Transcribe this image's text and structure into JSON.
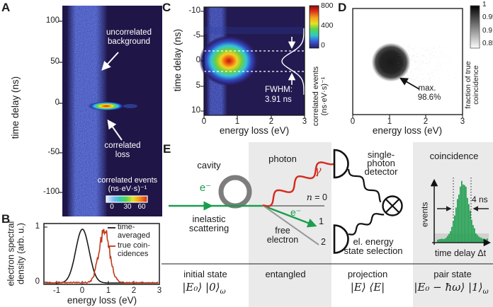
{
  "panel_a": {
    "letter": "A",
    "ylabel": "time delay (ns)",
    "yticks": [
      "100",
      "50",
      "0",
      "-50",
      "-100"
    ],
    "ann_background": [
      "uncorrelated",
      "background"
    ],
    "ann_loss": [
      "correlated",
      "loss"
    ],
    "colorbar": {
      "title": "correlated events",
      "units": "(ns·eV·s)⁻¹",
      "ticks": [
        "0",
        "30",
        "60"
      ]
    }
  },
  "panel_b": {
    "letter": "B",
    "ylabel_lines": [
      "electron spectral",
      "density (arb. u.)"
    ],
    "yticks": [
      "1",
      "0"
    ],
    "xticks": [
      "-1",
      "0",
      "1",
      "2",
      "3"
    ],
    "xlabel": "energy loss (eV)",
    "legend": [
      {
        "lines": [
          "time-",
          "averaged"
        ]
      },
      {
        "lines": [
          "true coin-",
          "cidences"
        ]
      }
    ]
  },
  "panel_c": {
    "letter": "C",
    "ylabel": "time delay (ns)",
    "yticks": [
      "-10",
      "-5",
      "0",
      "5",
      "10"
    ],
    "xticks": [
      "0",
      "1",
      "2",
      "3"
    ],
    "xlabel": "energy loss (eV)",
    "fwhm_lines": [
      "FWHM:",
      "3.91 ns"
    ],
    "colorbar": {
      "ticks": [
        "800",
        "400",
        "0"
      ],
      "label_lines": [
        "correlated events",
        "(ns·eV·s)⁻¹"
      ]
    }
  },
  "panel_d": {
    "letter": "D",
    "xticks": [
      "0",
      "1",
      "2",
      "3"
    ],
    "xlabel": "energy loss (eV)",
    "annotation_lines": [
      "max.",
      "98.6%"
    ],
    "colorbar": {
      "ticks": [
        "1",
        "0.95",
        "0.9",
        "0.85"
      ],
      "label_lines": [
        "fraction of true",
        "coincidence"
      ]
    }
  },
  "panel_e": {
    "letter": "E",
    "cavity": "cavity",
    "electron_in": "e⁻",
    "inelastic_lines": [
      "inelastic",
      "scattering"
    ],
    "photon": "photon",
    "gamma": "γ",
    "n_var": "n",
    "n_rest": " = 0",
    "electron_out": "e⁻",
    "level_1": "1",
    "level_2": "2",
    "free_electron_lines": [
      "free",
      "electron"
    ],
    "detector_lines": [
      "single-",
      "photon",
      "detector"
    ],
    "selection_lines": [
      "el. energy",
      "state selection"
    ],
    "coincidence_title": "coincidence",
    "events_label": "events",
    "fwhm_label": "4 ns",
    "time_axis_label": "time delay Δt",
    "footer": {
      "initial_label": "initial state",
      "initial_formula": "|E₀⟩ |0⟩",
      "initial_sub": "ω",
      "entangled_lines": [
        "entangled",
        "state"
      ],
      "projection_label": "projection",
      "projection_formula": "|E⟩ ⟨E|",
      "pair_label": "pair state",
      "pair_formula": "|E₀ − ħω⟩ |1⟩",
      "pair_sub": "ω"
    }
  },
  "chart_data": [
    {
      "id": "A",
      "type": "heatmap",
      "ylabel": "time delay (ns)",
      "ylim": [
        -130,
        120
      ],
      "yticks": [
        100,
        50,
        0,
        -50,
        -100
      ],
      "features": [
        "uncorrelated background: vertical noisy stripe near zero energy loss spanning all time delays",
        "correlated loss: bright horizontal spot at time delay 0 ns, energy loss ≈ 0.5–1 eV"
      ],
      "colorbar": {
        "label": "correlated events (ns·eV·s)⁻¹",
        "ticks": [
          0,
          30,
          60
        ]
      }
    },
    {
      "id": "B",
      "type": "line",
      "xlabel": "energy loss (eV)",
      "ylabel": "electron spectral density (arb. u.)",
      "xlim": [
        -1.5,
        3
      ],
      "ylim": [
        0,
        1.1
      ],
      "xticks": [
        -1,
        0,
        1,
        2,
        3
      ],
      "yticks": [
        0,
        1
      ],
      "series": [
        {
          "name": "time-averaged",
          "color": "#1a1a1a",
          "center_eV": 0.0,
          "sigma_eV": 0.26,
          "amplitude": 1.0,
          "noisy": false
        },
        {
          "name": "true coincidences",
          "color": "#c0391b",
          "center_eV": 0.85,
          "sigma_eV": 0.21,
          "amplitude": 0.97,
          "noisy": true
        }
      ],
      "legend_position": "upper right"
    },
    {
      "id": "C",
      "type": "heatmap",
      "xlabel": "energy loss (eV)",
      "ylabel": "time delay (ns)",
      "xlim": [
        0,
        3
      ],
      "ylim": [
        -10,
        10
      ],
      "xticks": [
        0,
        1,
        2,
        3
      ],
      "yticks": [
        -10,
        -5,
        0,
        5,
        10
      ],
      "peak": {
        "energy_loss_eV": 0.75,
        "time_delay_ns": 0
      },
      "fwhm_ns": 3.91,
      "colorbar": {
        "label": "correlated events (ns·eV·s)⁻¹",
        "ticks": [
          800,
          400,
          0
        ]
      }
    },
    {
      "id": "D",
      "type": "heatmap",
      "xlabel": "energy loss (eV)",
      "xlim": [
        0,
        3
      ],
      "xticks": [
        0,
        1,
        2,
        3
      ],
      "blob": {
        "energy_loss_eV": 1.0
      },
      "max_fraction_percent": 98.6,
      "colorbar": {
        "label": "fraction of true coincidence",
        "ticks": [
          1,
          0.95,
          0.9,
          0.85
        ]
      }
    },
    {
      "id": "E_hist",
      "type": "bar",
      "xlabel": "time delay Δt",
      "ylabel": "events",
      "shape": "gaussian",
      "fwhm_ns": 4,
      "color": "#1f9e4e",
      "annotation": "4 ns"
    }
  ]
}
